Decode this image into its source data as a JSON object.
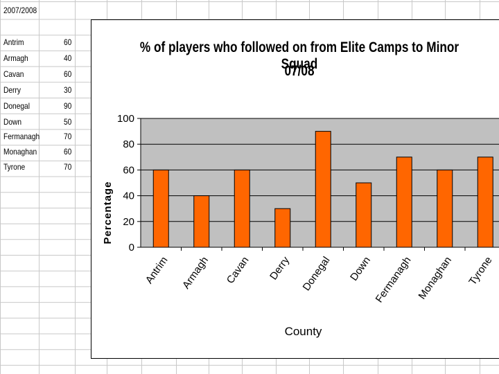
{
  "sheet": {
    "header_cell": "2007/2008",
    "rows": [
      {
        "county": "Antrim",
        "value": "60"
      },
      {
        "county": "Armagh",
        "value": "40"
      },
      {
        "county": "Cavan",
        "value": "60"
      },
      {
        "county": "Derry",
        "value": "30"
      },
      {
        "county": "Donegal",
        "value": "90"
      },
      {
        "county": "Down",
        "value": "50"
      },
      {
        "county": "Fermanagh",
        "value": "70"
      },
      {
        "county": "Monaghan",
        "value": "60"
      },
      {
        "county": "Tyrone",
        "value": "70"
      }
    ]
  },
  "chart_data": {
    "type": "bar",
    "title": "% of players who followed on from Elite Camps to Minor Squad",
    "subtitle": "07/08",
    "xlabel": "County",
    "ylabel": "Percentage",
    "categories": [
      "Antrim",
      "Armagh",
      "Cavan",
      "Derry",
      "Donegal",
      "Down",
      "Fermanagh",
      "Monaghan",
      "Tyrone"
    ],
    "values": [
      60,
      40,
      60,
      30,
      90,
      50,
      70,
      60,
      70
    ],
    "ylim": [
      0,
      100
    ],
    "yticks": [
      "0",
      "20",
      "40",
      "60",
      "80",
      "100"
    ],
    "grid": true,
    "legend": "none",
    "colors": {
      "bar": "#ff6600",
      "plot_bg": "#c0c0c0",
      "gridline": "#000000"
    }
  }
}
